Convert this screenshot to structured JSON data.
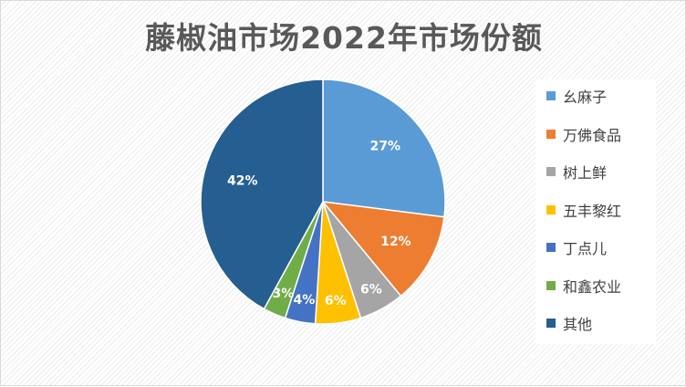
{
  "chart_data": {
    "type": "pie",
    "title": "藤椒油市场2022年市场份额",
    "categories": [
      "幺麻子",
      "万佛食品",
      "树上鲜",
      "五丰黎红",
      "丁点儿",
      "和鑫农业",
      "其他"
    ],
    "values": [
      27,
      12,
      6,
      6,
      4,
      3,
      42
    ],
    "labels": [
      "27%",
      "12%",
      "6%",
      "6%",
      "4%",
      "3%",
      "42%"
    ],
    "colors": [
      "#5b9bd5",
      "#ed7d31",
      "#a5a5a5",
      "#ffc000",
      "#4472c4",
      "#70ad47",
      "#255e91"
    ],
    "legend_position": "right"
  }
}
